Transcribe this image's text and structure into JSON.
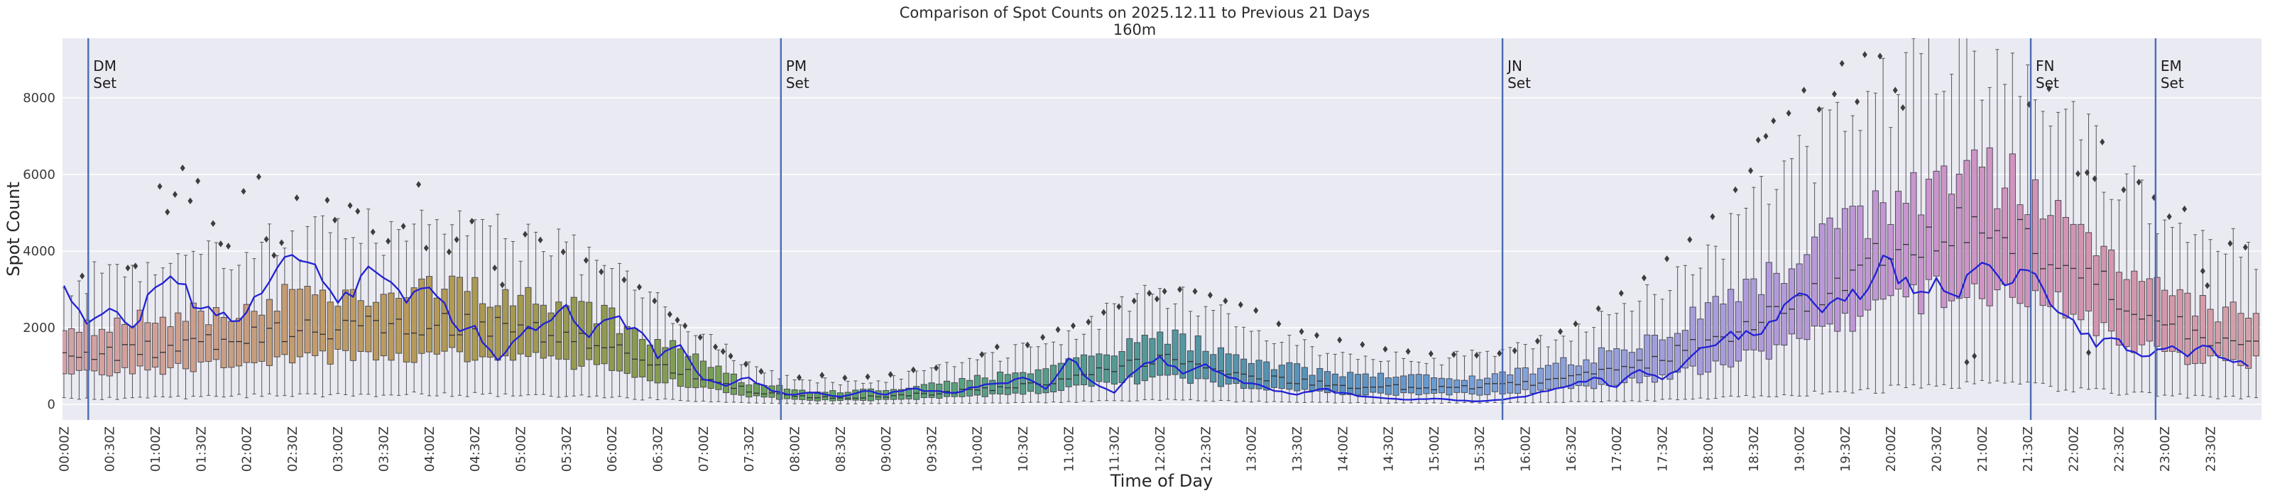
{
  "page": {
    "background": "#ffffff"
  },
  "chart_data": {
    "type": "boxplot+line",
    "title": "Comparison of Spot Counts on 2025.12.11 to Previous 21 Days",
    "subtitle": "160m",
    "xlabel": "Time of Day",
    "ylabel": "Spot Count",
    "yticks": [
      0,
      2000,
      4000,
      6000,
      8000
    ],
    "ylim": [
      -400,
      9560
    ],
    "grid": "horizontal-only",
    "legend": "none",
    "bin_minutes": 5,
    "x_tick_labels": [
      "00:00Z",
      "00:30Z",
      "01:00Z",
      "01:30Z",
      "02:00Z",
      "02:30Z",
      "03:00Z",
      "03:30Z",
      "04:00Z",
      "04:30Z",
      "05:00Z",
      "05:30Z",
      "06:00Z",
      "06:30Z",
      "07:00Z",
      "07:30Z",
      "08:00Z",
      "08:30Z",
      "09:00Z",
      "09:30Z",
      "10:00Z",
      "10:30Z",
      "11:00Z",
      "11:30Z",
      "12:00Z",
      "12:30Z",
      "13:00Z",
      "13:30Z",
      "14:00Z",
      "14:30Z",
      "15:00Z",
      "15:30Z",
      "16:00Z",
      "16:30Z",
      "17:00Z",
      "17:30Z",
      "18:00Z",
      "18:30Z",
      "19:00Z",
      "19:30Z",
      "20:00Z",
      "20:30Z",
      "21:00Z",
      "21:30Z",
      "22:00Z",
      "22:30Z",
      "23:00Z",
      "23:30Z"
    ],
    "sunset_lines": [
      {
        "name": "DM Set",
        "minutes": 16
      },
      {
        "name": "PM Set",
        "minutes": 471
      },
      {
        "name": "JN Set",
        "minutes": 945
      },
      {
        "name": "FN Set",
        "minutes": 1292
      },
      {
        "name": "EM Set",
        "minutes": 1374
      }
    ],
    "series": {
      "boxes": {
        "label": "Previous 21 Days",
        "step_minutes": 30,
        "median": [
          1250,
          1300,
          1450,
          1550,
          1750,
          1900,
          2000,
          2050,
          2100,
          2050,
          1950,
          1800,
          1500,
          1100,
          700,
          350,
          200,
          180,
          200,
          280,
          380,
          500,
          700,
          950,
          1200,
          1000,
          750,
          600,
          500,
          450,
          430,
          470,
          550,
          700,
          900,
          1200,
          1600,
          2100,
          2700,
          3300,
          3900,
          4400,
          4500,
          4300,
          3600,
          2700,
          2100,
          1800,
          1700
        ],
        "q1": [
          780,
          810,
          900,
          960,
          1080,
          1180,
          1250,
          1280,
          1300,
          1270,
          1200,
          1100,
          920,
          660,
          420,
          210,
          115,
          100,
          115,
          160,
          220,
          290,
          410,
          560,
          720,
          600,
          450,
          360,
          300,
          270,
          260,
          285,
          330,
          420,
          540,
          720,
          960,
          1280,
          1670,
          2080,
          2520,
          2900,
          3000,
          2850,
          2350,
          1750,
          1350,
          1150,
          1080
        ],
        "q3": [
          1950,
          2030,
          2230,
          2380,
          2620,
          2800,
          2900,
          2950,
          3000,
          2930,
          2800,
          2620,
          2200,
          1660,
          1100,
          580,
          360,
          330,
          365,
          500,
          660,
          840,
          1120,
          1480,
          1820,
          1540,
          1160,
          940,
          790,
          715,
          690,
          750,
          870,
          1100,
          1400,
          1850,
          2420,
          3120,
          3950,
          4720,
          5350,
          5850,
          5950,
          5650,
          4800,
          3700,
          2950,
          2550,
          2420
        ],
        "whisker_low": [
          150,
          155,
          175,
          190,
          215,
          235,
          250,
          255,
          260,
          250,
          235,
          215,
          180,
          125,
          70,
          35,
          15,
          12,
          15,
          22,
          32,
          42,
          62,
          90,
          115,
          95,
          70,
          52,
          42,
          38,
          36,
          40,
          48,
          62,
          82,
          112,
          150,
          200,
          265,
          330,
          405,
          480,
          500,
          470,
          390,
          295,
          225,
          190,
          175
        ],
        "whisker_high": [
          3250,
          3380,
          3650,
          3870,
          4150,
          4330,
          4450,
          4520,
          4560,
          4470,
          4280,
          4000,
          3420,
          2620,
          1830,
          1020,
          640,
          590,
          660,
          880,
          1150,
          1430,
          1880,
          2430,
          2920,
          2500,
          1930,
          1580,
          1340,
          1220,
          1180,
          1280,
          1480,
          1860,
          2360,
          3080,
          3980,
          5080,
          6300,
          7420,
          8150,
          8700,
          8780,
          8420,
          7300,
          5900,
          4800,
          4200,
          4000
        ]
      },
      "line": {
        "label": "2025.12.11",
        "step_minutes": 15,
        "values": [
          3100,
          2100,
          2500,
          2000,
          3050,
          3150,
          2500,
          2400,
          2400,
          3200,
          3900,
          3650,
          2650,
          3350,
          3300,
          2650,
          3050,
          2150,
          2050,
          1150,
          1800,
          2100,
          2600,
          1750,
          2250,
          2000,
          1200,
          1550,
          650,
          480,
          700,
          350,
          250,
          300,
          200,
          350,
          250,
          400,
          350,
          300,
          450,
          550,
          700,
          400,
          1200,
          600,
          300,
          900,
          1250,
          800,
          1050,
          700,
          550,
          350,
          250,
          400,
          300,
          200,
          150,
          120,
          150,
          100,
          80,
          120,
          200,
          350,
          500,
          700,
          450,
          900,
          650,
          1100,
          1500,
          1900,
          1800,
          2200,
          2900,
          2400,
          2700,
          3000,
          3800,
          2900,
          3300,
          2800,
          3700,
          3100,
          3500,
          2600,
          2200,
          1500,
          1700,
          1250,
          1450,
          1250,
          1500,
          1100,
          1000
        ]
      }
    },
    "outliers": [
      [
        12,
        3350
      ],
      [
        42,
        3560
      ],
      [
        47,
        3610
      ],
      [
        63,
        5690
      ],
      [
        68,
        5020
      ],
      [
        73,
        5480
      ],
      [
        78,
        6170
      ],
      [
        83,
        5310
      ],
      [
        88,
        5830
      ],
      [
        98,
        4720
      ],
      [
        103,
        4190
      ],
      [
        108,
        4130
      ],
      [
        118,
        5560
      ],
      [
        128,
        5940
      ],
      [
        133,
        4310
      ],
      [
        138,
        3890
      ],
      [
        143,
        4220
      ],
      [
        153,
        5390
      ],
      [
        173,
        5330
      ],
      [
        178,
        4810
      ],
      [
        188,
        5190
      ],
      [
        193,
        5040
      ],
      [
        203,
        4500
      ],
      [
        213,
        4260
      ],
      [
        223,
        4650
      ],
      [
        233,
        5740
      ],
      [
        238,
        4080
      ],
      [
        253,
        3980
      ],
      [
        258,
        4300
      ],
      [
        268,
        4780
      ],
      [
        283,
        3560
      ],
      [
        288,
        3120
      ],
      [
        303,
        4440
      ],
      [
        313,
        4290
      ],
      [
        328,
        3980
      ],
      [
        343,
        3760
      ],
      [
        353,
        3460
      ],
      [
        368,
        3250
      ],
      [
        378,
        3060
      ],
      [
        388,
        2700
      ],
      [
        398,
        2350
      ],
      [
        403,
        2200
      ],
      [
        408,
        2050
      ],
      [
        418,
        1750
      ],
      [
        428,
        1500
      ],
      [
        433,
        1380
      ],
      [
        438,
        1260
      ],
      [
        448,
        1050
      ],
      [
        458,
        860
      ],
      [
        483,
        700
      ],
      [
        498,
        760
      ],
      [
        513,
        690
      ],
      [
        528,
        720
      ],
      [
        543,
        780
      ],
      [
        558,
        900
      ],
      [
        573,
        950
      ],
      [
        603,
        1300
      ],
      [
        613,
        1500
      ],
      [
        633,
        1550
      ],
      [
        643,
        1750
      ],
      [
        653,
        1950
      ],
      [
        663,
        2050
      ],
      [
        673,
        2150
      ],
      [
        683,
        2400
      ],
      [
        693,
        2550
      ],
      [
        703,
        2700
      ],
      [
        713,
        2900
      ],
      [
        718,
        2750
      ],
      [
        723,
        2950
      ],
      [
        733,
        3000
      ],
      [
        743,
        2950
      ],
      [
        753,
        2850
      ],
      [
        763,
        2700
      ],
      [
        773,
        2600
      ],
      [
        783,
        2450
      ],
      [
        798,
        2100
      ],
      [
        813,
        1900
      ],
      [
        823,
        1800
      ],
      [
        838,
        1680
      ],
      [
        853,
        1560
      ],
      [
        868,
        1440
      ],
      [
        883,
        1380
      ],
      [
        898,
        1320
      ],
      [
        913,
        1300
      ],
      [
        928,
        1280
      ],
      [
        943,
        1330
      ],
      [
        953,
        1400
      ],
      [
        968,
        1650
      ],
      [
        983,
        1900
      ],
      [
        993,
        2100
      ],
      [
        1008,
        2500
      ],
      [
        1023,
        2900
      ],
      [
        1038,
        3300
      ],
      [
        1053,
        3800
      ],
      [
        1068,
        4300
      ],
      [
        1083,
        4900
      ],
      [
        1098,
        5600
      ],
      [
        1108,
        6100
      ],
      [
        1113,
        6900
      ],
      [
        1118,
        7000
      ],
      [
        1123,
        7400
      ],
      [
        1133,
        7600
      ],
      [
        1143,
        8200
      ],
      [
        1153,
        7700
      ],
      [
        1163,
        8100
      ],
      [
        1168,
        8900
      ],
      [
        1178,
        7900
      ],
      [
        1183,
        9130
      ],
      [
        1193,
        9090
      ],
      [
        1203,
        8200
      ],
      [
        1208,
        7745
      ],
      [
        1250,
        1100
      ],
      [
        1255,
        1260
      ],
      [
        1291,
        7830
      ],
      [
        1304,
        8240
      ],
      [
        1323,
        6020
      ],
      [
        1329,
        6050
      ],
      [
        1334,
        5890
      ],
      [
        1339,
        6850
      ],
      [
        1330,
        1350
      ],
      [
        1353,
        5600
      ],
      [
        1363,
        5800
      ],
      [
        1373,
        5400
      ],
      [
        1383,
        4900
      ],
      [
        1393,
        5100
      ],
      [
        1405,
        3480
      ],
      [
        1408,
        3100
      ],
      [
        1423,
        4200
      ],
      [
        1433,
        4100
      ]
    ],
    "colors": {
      "plot_bg": "#eaeaf2",
      "grid": "#ffffff",
      "line": "#2121d6",
      "vline": "#4a6cb3",
      "box_edge": "#44444c",
      "median": "#2f2f35",
      "whisker": "#555555",
      "flier": "#3d3d3d",
      "text": "#2b2b2b",
      "tick_text": "#3a3a3a",
      "box_hue_stops": [
        [
          0,
          "#d4a2a8"
        ],
        [
          1,
          "#d0a095"
        ],
        [
          2,
          "#c89d7e"
        ],
        [
          3,
          "#c09b64"
        ],
        [
          4,
          "#b59a57"
        ],
        [
          5,
          "#a39952"
        ],
        [
          6,
          "#8f9a50"
        ],
        [
          7,
          "#78a054"
        ],
        [
          8,
          "#66a35f"
        ],
        [
          9,
          "#5ba26f"
        ],
        [
          10,
          "#57a081"
        ],
        [
          11,
          "#549c8e"
        ],
        [
          12,
          "#53989b"
        ],
        [
          13,
          "#5693ae"
        ],
        [
          14,
          "#5b93c0"
        ],
        [
          15,
          "#6a9bd0"
        ],
        [
          16,
          "#84a2da"
        ],
        [
          17,
          "#97a0dc"
        ],
        [
          18,
          "#a89ddb"
        ],
        [
          19,
          "#b699d8"
        ],
        [
          20,
          "#c596d2"
        ],
        [
          21,
          "#cf94c4"
        ],
        [
          22,
          "#d394b2"
        ],
        [
          23,
          "#d498a9"
        ],
        [
          24,
          "#d4a2a8"
        ]
      ]
    }
  }
}
